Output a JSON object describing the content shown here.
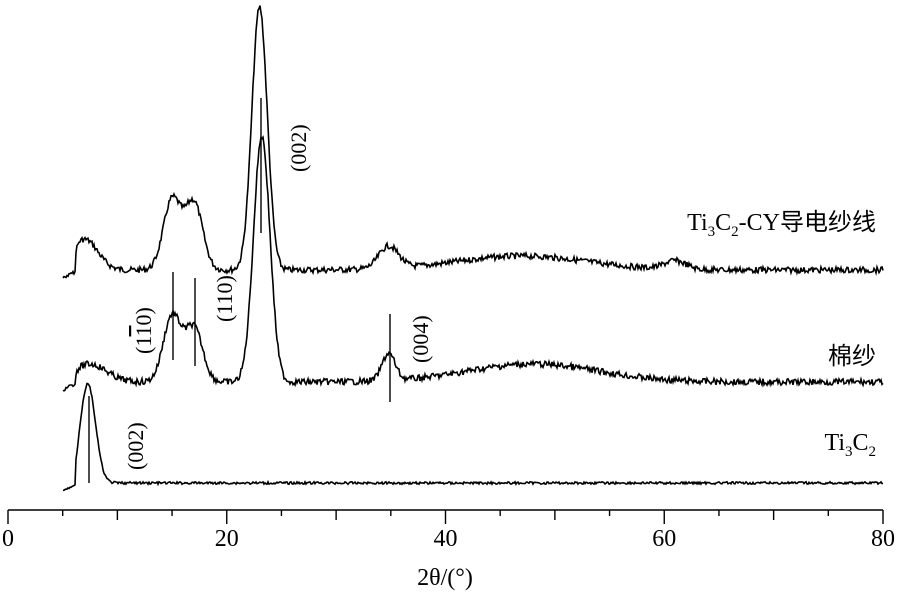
{
  "chart_data": {
    "type": "line",
    "xlabel": "2θ/(°)",
    "xlim": [
      0,
      80
    ],
    "x_ticks": [
      0,
      20,
      40,
      60,
      80
    ],
    "x_tick_labels": [
      "0",
      "20",
      "40",
      "60",
      "80"
    ],
    "y_axis_shown": false,
    "grid": false,
    "legend": "none",
    "series": [
      {
        "name": "Ti3C2-CY导电纱线",
        "label_parts": {
          "a": "Ti",
          "b": "3",
          "c": "C",
          "d": "2",
          "e": "-CY导电纱线"
        },
        "peaks": [
          {
            "x": 7.0,
            "height": 0.11,
            "width": 1.2
          },
          {
            "x": 15.0,
            "height": 0.25,
            "width": 0.8
          },
          {
            "x": 17.0,
            "height": 0.24,
            "width": 0.8
          },
          {
            "x": 23.0,
            "height": 0.94,
            "width": 0.7
          },
          {
            "x": 34.8,
            "height": 0.08,
            "width": 0.9
          },
          {
            "x": 47.0,
            "height": 0.05,
            "width": 6.0
          },
          {
            "x": 61.0,
            "height": 0.03,
            "width": 1.0
          }
        ],
        "x_range": [
          5.0,
          80.0
        ]
      },
      {
        "name": "棉纱",
        "peaks": [
          {
            "x": 7.5,
            "height": 0.06,
            "width": 1.5
          },
          {
            "x": 15.0,
            "height": 0.22,
            "width": 0.8
          },
          {
            "x": 17.0,
            "height": 0.18,
            "width": 0.8
          },
          {
            "x": 23.2,
            "height": 0.82,
            "width": 0.75
          },
          {
            "x": 34.8,
            "height": 0.09,
            "width": 0.6
          },
          {
            "x": 48.0,
            "height": 0.06,
            "width": 6.0
          }
        ],
        "x_range": [
          5.0,
          80.0
        ]
      },
      {
        "name": "Ti3C2",
        "label_parts": {
          "a": "Ti",
          "b": "3",
          "c": "C",
          "d": "2"
        },
        "peaks": [
          {
            "x": 7.3,
            "height": 0.33,
            "width": 0.7
          }
        ],
        "x_range": [
          5.0,
          80.0
        ]
      }
    ],
    "annotations": [
      {
        "text": "(002)",
        "x": 23.0,
        "series": "Ti3C2-CY导电纱线"
      },
      {
        "text": "(1-10)",
        "parts": {
          "a": "(1",
          "b": "1",
          "c": "0)"
        },
        "x": 15.0,
        "series": "棉纱"
      },
      {
        "text": "(110)",
        "x": 17.0,
        "series": "棉纱"
      },
      {
        "text": "(004)",
        "x": 34.8,
        "series": "棉纱"
      },
      {
        "text": "(002)",
        "x": 7.3,
        "series": "Ti3C2"
      }
    ]
  }
}
